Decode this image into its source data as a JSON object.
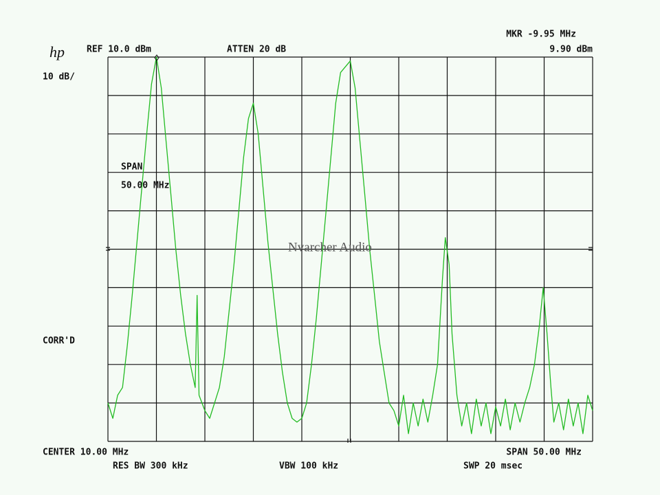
{
  "chart_data": {
    "type": "line",
    "logo": "hp",
    "ref_level": "REF 10.0  dBm",
    "attenuation": "ATTEN 20  dB",
    "marker_freq": "MKR -9.95 MHz",
    "marker_level": "9.90  dBm",
    "scale": "10  dB/",
    "span_label": "SPAN",
    "span_value": "50.00  MHz",
    "correction": "CORR'D",
    "center": "CENTER 10.00  MHz",
    "span": "SPAN 50.00  MHz",
    "res_bw": "RES BW 300  kHz",
    "vbw": "VBW 100  kHz",
    "sweep": "SWP 20  msec",
    "watermark": "Nvarcher Audio",
    "color": "#22bb22",
    "grid": true,
    "xlim": [
      -15,
      35
    ],
    "ylim": [
      -90,
      10
    ],
    "xticks": [
      -15,
      -10,
      -5,
      0,
      5,
      10,
      15,
      20,
      25,
      30,
      35
    ],
    "yticks": [
      -90,
      -80,
      -70,
      -60,
      -50,
      -40,
      -30,
      -20,
      -10,
      0,
      10
    ],
    "x": [
      -15,
      -14.5,
      -14,
      -13.5,
      -13,
      -12.5,
      -12,
      -11.5,
      -11,
      -10.5,
      -10,
      -9.5,
      -9,
      -8.5,
      -8,
      -7.5,
      -7,
      -6.5,
      -6,
      -5.8,
      -5.6,
      -5,
      -4.5,
      -4,
      -3.5,
      -3,
      -2.5,
      -2,
      -1.5,
      -1,
      -0.5,
      0,
      0.5,
      1,
      1.5,
      2,
      2.5,
      3,
      3.5,
      4,
      4.5,
      5,
      5.5,
      6,
      6.5,
      7,
      7.5,
      8,
      8.5,
      9,
      10,
      10.5,
      11,
      11.5,
      12,
      12.5,
      13,
      13.5,
      14,
      14.5,
      15,
      15.5,
      16,
      16.5,
      17,
      17.5,
      18,
      18.5,
      19,
      19.5,
      19.8,
      20.2,
      20.5,
      21,
      21.5,
      22,
      22.5,
      23,
      23.5,
      24,
      24.5,
      25,
      25.5,
      26,
      26.5,
      27,
      27.5,
      28,
      28.5,
      29,
      29.5,
      29.9,
      30.3,
      30.7,
      31,
      31.5,
      32,
      32.5,
      33,
      33.5,
      34,
      34.5,
      35
    ],
    "values": [
      -80,
      -84,
      -78,
      -76,
      -65,
      -52,
      -38,
      -24,
      -10,
      3,
      10,
      2,
      -12,
      -26,
      -40,
      -52,
      -62,
      -70,
      -76,
      -52,
      -78,
      -82,
      -84,
      -80,
      -76,
      -68,
      -56,
      -44,
      -30,
      -16,
      -6,
      -2,
      -10,
      -24,
      -38,
      -50,
      -62,
      -72,
      -80,
      -84,
      -85,
      -84,
      -80,
      -70,
      -58,
      -44,
      -30,
      -16,
      -2,
      6,
      9,
      2,
      -12,
      -26,
      -40,
      -52,
      -64,
      -72,
      -80,
      -82,
      -86,
      -78,
      -88,
      -80,
      -86,
      -79,
      -85,
      -78,
      -70,
      -48,
      -37,
      -44,
      -62,
      -78,
      -86,
      -80,
      -88,
      -79,
      -86,
      -80,
      -88,
      -81,
      -86,
      -79,
      -87,
      -80,
      -85,
      -80,
      -76,
      -70,
      -60,
      -50,
      -62,
      -76,
      -85,
      -80,
      -87,
      -79,
      -86,
      -80,
      -88,
      -78,
      -82
    ]
  }
}
